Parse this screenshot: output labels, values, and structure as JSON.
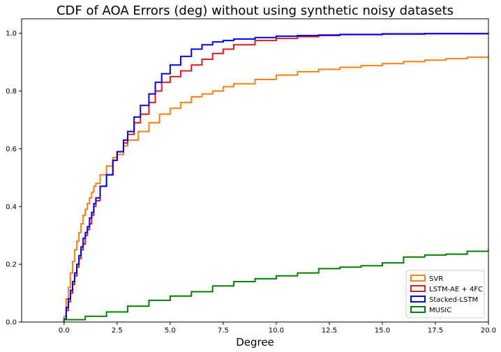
{
  "chart_data": {
    "type": "line",
    "step": true,
    "title": "CDF of AOA Errors (deg) without using synthetic noisy datasets",
    "xlabel": "Degree",
    "ylabel": "",
    "xlim": [
      -2.0,
      20.0
    ],
    "ylim": [
      0.0,
      1.05
    ],
    "xticks": [
      0.0,
      2.5,
      5.0,
      7.5,
      10.0,
      12.5,
      15.0,
      17.5,
      20.0
    ],
    "xtick_labels": [
      "0.0",
      "2.5",
      "5.0",
      "7.5",
      "10.0",
      "12.5",
      "15.0",
      "17.5",
      "20.0"
    ],
    "yticks": [
      0.0,
      0.2,
      0.4,
      0.6,
      0.8,
      1.0
    ],
    "ytick_labels": [
      "0.0",
      "0.2",
      "0.4",
      "0.6",
      "0.8",
      "1.0"
    ],
    "grid": false,
    "legend_position": "lower-right",
    "series": [
      {
        "name": "SVR",
        "color": "#ff7f0e",
        "x": [
          0,
          0.1,
          0.2,
          0.3,
          0.4,
          0.5,
          0.6,
          0.7,
          0.8,
          0.9,
          1.0,
          1.1,
          1.2,
          1.3,
          1.4,
          1.5,
          1.7,
          2.0,
          2.3,
          2.5,
          2.8,
          3.0,
          3.5,
          4.0,
          4.5,
          5.0,
          5.5,
          6.0,
          6.5,
          7.0,
          7.5,
          8.0,
          9.0,
          10.0,
          11.0,
          12.0,
          13.0,
          14.0,
          15.0,
          16.0,
          17.0,
          18.0,
          19.0,
          20.0
        ],
        "y": [
          0.02,
          0.08,
          0.12,
          0.17,
          0.21,
          0.25,
          0.28,
          0.31,
          0.34,
          0.37,
          0.39,
          0.41,
          0.43,
          0.45,
          0.47,
          0.48,
          0.51,
          0.54,
          0.57,
          0.58,
          0.61,
          0.63,
          0.66,
          0.69,
          0.72,
          0.74,
          0.76,
          0.78,
          0.79,
          0.8,
          0.815,
          0.825,
          0.84,
          0.855,
          0.867,
          0.875,
          0.882,
          0.888,
          0.895,
          0.902,
          0.907,
          0.912,
          0.917,
          0.922
        ]
      },
      {
        "name": "LSTM-AE + 4FC",
        "color": "#e31a1c",
        "x": [
          0,
          0.1,
          0.2,
          0.3,
          0.4,
          0.5,
          0.6,
          0.7,
          0.8,
          0.9,
          1.0,
          1.1,
          1.2,
          1.3,
          1.4,
          1.5,
          1.7,
          2.0,
          2.3,
          2.5,
          2.8,
          3.0,
          3.3,
          3.6,
          4.0,
          4.3,
          4.6,
          5.0,
          5.5,
          6.0,
          6.5,
          7.0,
          7.5,
          8.0,
          9.0,
          10.0,
          11.0,
          12.0,
          13.0,
          15.0,
          17.0,
          20.0
        ],
        "y": [
          0.01,
          0.04,
          0.07,
          0.1,
          0.13,
          0.16,
          0.19,
          0.22,
          0.25,
          0.27,
          0.3,
          0.32,
          0.34,
          0.37,
          0.4,
          0.42,
          0.47,
          0.51,
          0.56,
          0.59,
          0.62,
          0.65,
          0.69,
          0.72,
          0.76,
          0.8,
          0.83,
          0.85,
          0.87,
          0.89,
          0.91,
          0.93,
          0.945,
          0.96,
          0.975,
          0.982,
          0.988,
          0.992,
          0.995,
          0.997,
          0.998,
          0.999
        ]
      },
      {
        "name": "Stacked-LSTM",
        "color": "#0000ff",
        "x": [
          0,
          0.1,
          0.2,
          0.3,
          0.4,
          0.5,
          0.6,
          0.7,
          0.8,
          0.9,
          1.0,
          1.1,
          1.2,
          1.3,
          1.4,
          1.5,
          1.7,
          2.0,
          2.3,
          2.5,
          2.8,
          3.0,
          3.3,
          3.6,
          4.0,
          4.3,
          4.6,
          5.0,
          5.5,
          6.0,
          6.5,
          7.0,
          7.5,
          8.0,
          9.0,
          10.0,
          11.0,
          12.0,
          13.0,
          15.0,
          17.0,
          20.0
        ],
        "y": [
          0.01,
          0.05,
          0.08,
          0.11,
          0.14,
          0.17,
          0.2,
          0.23,
          0.26,
          0.29,
          0.31,
          0.33,
          0.36,
          0.38,
          0.41,
          0.43,
          0.47,
          0.51,
          0.56,
          0.59,
          0.63,
          0.66,
          0.71,
          0.75,
          0.79,
          0.83,
          0.86,
          0.89,
          0.92,
          0.945,
          0.96,
          0.97,
          0.975,
          0.98,
          0.985,
          0.99,
          0.992,
          0.994,
          0.996,
          0.998,
          0.999,
          1.0
        ]
      },
      {
        "name": "MUSIC",
        "color": "#008000",
        "x": [
          0,
          1.0,
          2.0,
          3.0,
          4.0,
          5.0,
          6.0,
          7.0,
          8.0,
          9.0,
          10.0,
          11.0,
          12.0,
          13.0,
          14.0,
          15.0,
          16.0,
          17.0,
          18.0,
          19.0,
          20.0
        ],
        "y": [
          0.008,
          0.02,
          0.035,
          0.055,
          0.075,
          0.09,
          0.105,
          0.125,
          0.14,
          0.15,
          0.16,
          0.17,
          0.185,
          0.19,
          0.195,
          0.205,
          0.225,
          0.232,
          0.235,
          0.245,
          0.25
        ]
      }
    ]
  }
}
